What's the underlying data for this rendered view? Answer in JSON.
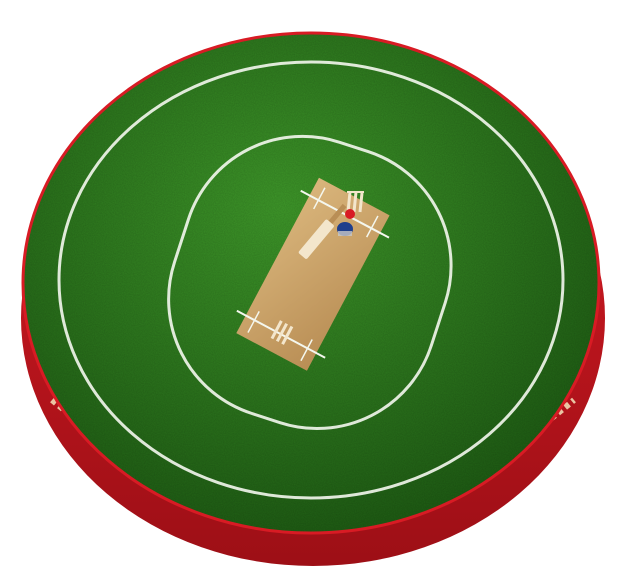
{
  "scene": {
    "subject": "cricket-ground-on-ball",
    "colors": {
      "background": "#ffffff",
      "grass_light": "#3f9a2a",
      "grass_dark": "#1f5e14",
      "ball_red": "#d81b24",
      "ball_red_dark": "#9d0f16",
      "seam_cream": "#f1d9b3",
      "pitch": "#d9b57b",
      "pitch_dark": "#b98e55",
      "line_white": "#f4f7ee",
      "stump": "#f3e6cc",
      "helmet_blue": "#1f3f8c"
    }
  }
}
